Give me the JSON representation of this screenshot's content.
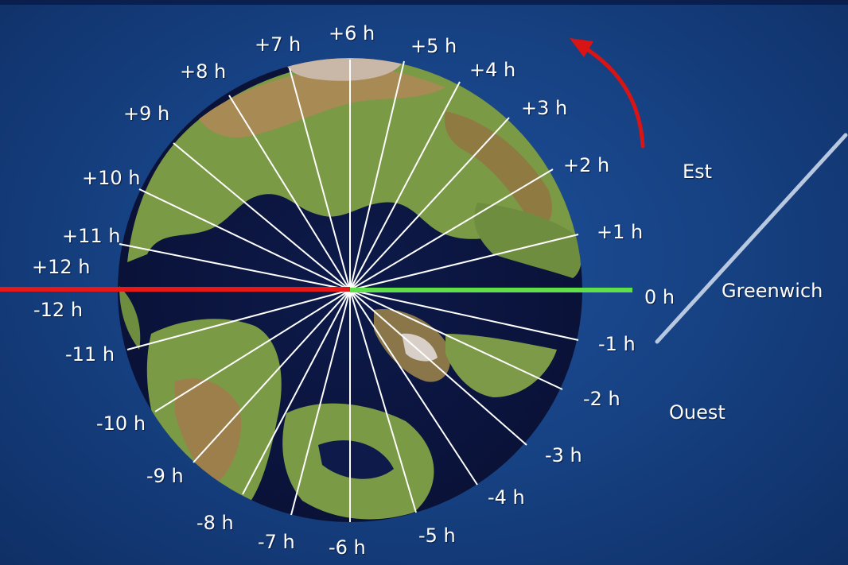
{
  "hour_labels": {
    "p6": "+6 h",
    "p5": "+5 h",
    "p4": "+4 h",
    "p3": "+3 h",
    "p2": "+2 h",
    "p1": "+1 h",
    "zero": "0 h",
    "m1": "-1 h",
    "m2": "-2 h",
    "m3": "-3 h",
    "m4": "-4 h",
    "m5": "-5 h",
    "m6": "-6 h",
    "m7": "-7 h",
    "m8": "-8 h",
    "m9": "-9 h",
    "m10": "-10 h",
    "m11": "-11 h",
    "m12": "-12 h",
    "p12": "+12 h",
    "p11": "+11 h",
    "p10": "+10 h",
    "p9": "+9 h",
    "p8": "+8 h",
    "p7": "+7 h"
  },
  "direction_labels": {
    "east": "Est",
    "west": "Ouest",
    "prime_meridian": "Greenwich"
  },
  "colors": {
    "background": "#174385",
    "meridian_lines": "#ffffff",
    "greenwich_line": "#5fe04a",
    "date_line": "#e81818",
    "rotation_arrow": "#d81414",
    "pointer_line": "#b8c8e0"
  },
  "icons": {
    "rotation": "curved-arrow-icon"
  }
}
